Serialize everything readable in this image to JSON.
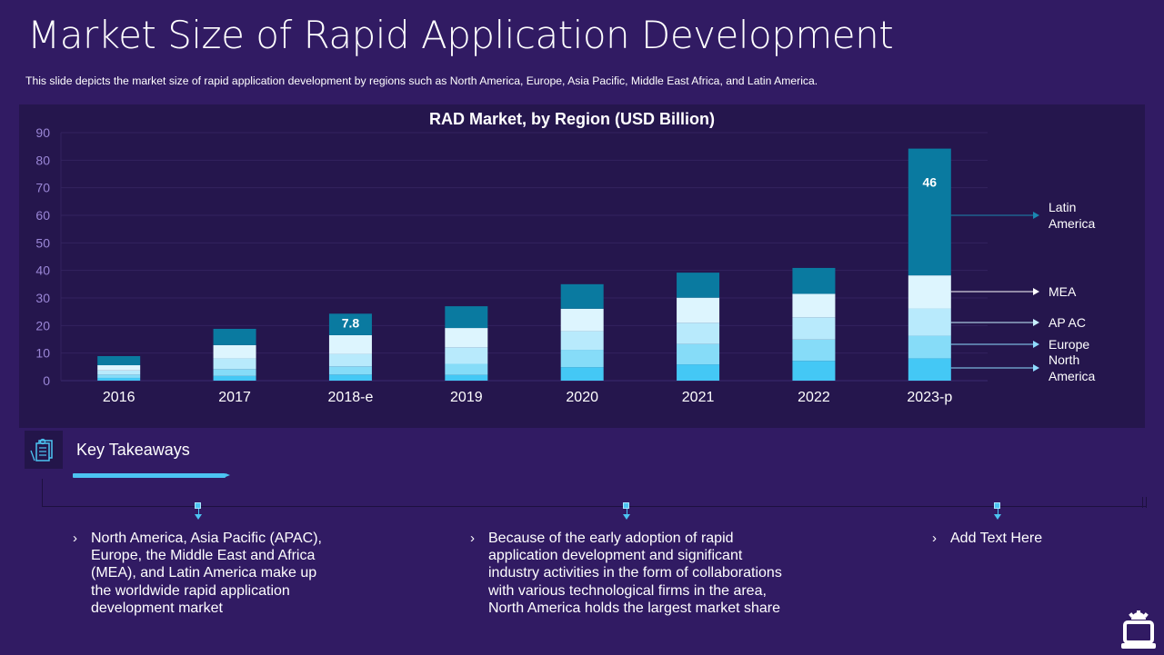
{
  "header": {
    "title": "Market Size of Rapid Application Development",
    "subtitle": "This slide depicts the market size of rapid application development  by regions such as North America, Europe, Asia Pacific, Middle East Africa, and Latin America."
  },
  "colors": {
    "background": "#311b63",
    "chart_panel": "#25164d",
    "accent": "#4cc4f2",
    "series": [
      "#44c8f5",
      "#86dcf8",
      "#b8eafc",
      "#ddf5fe",
      "#0a7aa0"
    ]
  },
  "chart_data": {
    "type": "bar",
    "stacked": true,
    "title": "RAD Market, by Region (USD Billion)",
    "xlabel": "",
    "ylabel": "",
    "ylim": [
      0,
      90
    ],
    "yticks": [
      0,
      10,
      20,
      30,
      40,
      50,
      60,
      70,
      80,
      90
    ],
    "grid": true,
    "legend": "right (arrow callouts on last bar)",
    "categories": [
      "2016",
      "2017",
      "2018-e",
      "2019",
      "2020",
      "2021",
      "2022",
      "2023-p"
    ],
    "series": [
      {
        "name": "North America",
        "legend_label": "North\nAmerica",
        "values": [
          1.0,
          1.7,
          2.2,
          2.1,
          4.9,
          5.9,
          7.2,
          8.1
        ]
      },
      {
        "name": "Europe",
        "legend_label": "Europe",
        "values": [
          1.2,
          2.5,
          3.0,
          4.0,
          6.3,
          7.4,
          7.7,
          8.2
        ]
      },
      {
        "name": "AP AC",
        "legend_label": "AP AC",
        "values": [
          1.5,
          3.9,
          4.5,
          6.0,
          6.8,
          7.7,
          8.1,
          9.9
        ]
      },
      {
        "name": "MEA",
        "legend_label": "MEA",
        "values": [
          1.9,
          4.8,
          6.8,
          7.0,
          8.1,
          9.1,
          8.5,
          12.0
        ]
      },
      {
        "name": "Latin America",
        "legend_label": "Latin\nAmerica",
        "values": [
          3.3,
          5.9,
          7.8,
          7.9,
          8.9,
          9.1,
          9.4,
          46.0
        ]
      }
    ],
    "data_labels": [
      {
        "category": "2018-e",
        "series": "Latin America",
        "text": "7.8"
      },
      {
        "category": "2023-p",
        "series": "Latin America",
        "text": "46"
      }
    ]
  },
  "takeaways": {
    "title": "Key Takeaways",
    "icon": "clipboard-checklist-icon",
    "points": [
      {
        "lines": [
          "North America, Asia Pacific (APAC),",
          "Europe, the Middle East and Africa",
          "(MEA), and Latin America make up",
          "the worldwide rapid application",
          "development market"
        ]
      },
      {
        "lines": [
          "Because of the early adoption of rapid",
          "application development and significant",
          "industry activities in the form of collaborations",
          "with various technological firms in the area,",
          "North America holds the largest market share"
        ]
      },
      {
        "lines": [
          "Add Text Here"
        ]
      }
    ],
    "bullet": "›"
  },
  "footer": {
    "icon": "laptop-gear-icon"
  }
}
